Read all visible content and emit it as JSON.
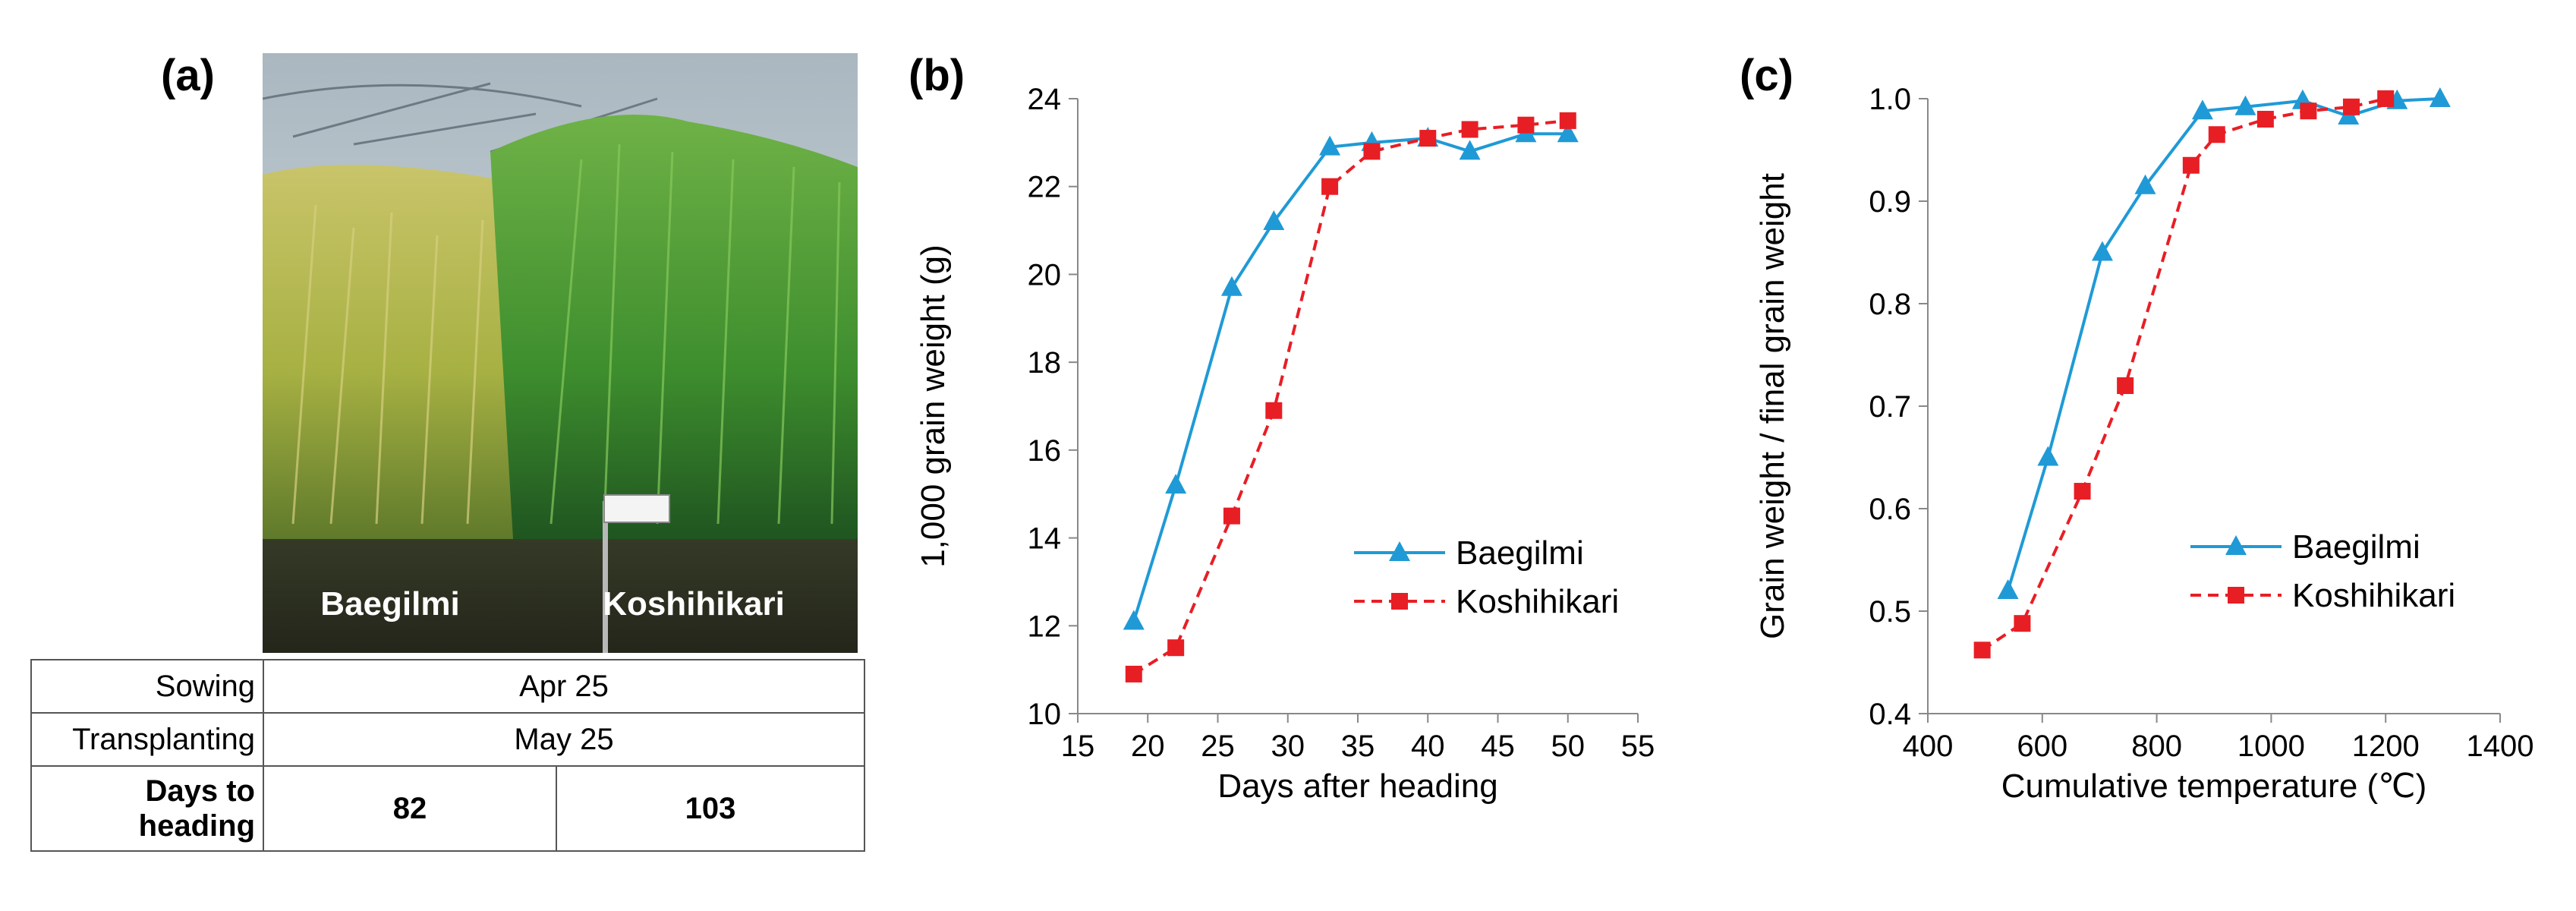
{
  "panel_labels": {
    "a": "(a)",
    "b": "(b)",
    "c": "(c)"
  },
  "photo": {
    "left_label": "Baegilmi",
    "right_label": "Koshihikari"
  },
  "table": {
    "rows": [
      {
        "label": "Sowing",
        "value": "Apr 25"
      },
      {
        "label": "Transplanting",
        "value": "May 25"
      }
    ],
    "heading": {
      "label_line1": "Days to",
      "label_line2": "heading",
      "baegilmi": "82",
      "koshihikari": "103"
    }
  },
  "colors": {
    "baegilmi": "#1f9ad6",
    "koshihikari": "#e81e25"
  },
  "chart_data": [
    {
      "type": "line",
      "title": "",
      "xlabel": "Days after heading",
      "ylabel": "1,000 grain weight (g)",
      "xlim": [
        15,
        55
      ],
      "ylim": [
        10,
        24
      ],
      "xticks": [
        15,
        20,
        25,
        30,
        35,
        40,
        45,
        50,
        55
      ],
      "yticks": [
        10,
        12,
        14,
        16,
        18,
        20,
        22,
        24
      ],
      "legend": "center-right",
      "grid": false,
      "series": [
        {
          "name": "Baegilmi",
          "marker": "triangle",
          "style": "solid",
          "x": [
            19,
            22,
            26,
            29,
            33,
            36,
            40,
            43,
            47,
            50
          ],
          "y": [
            12.1,
            15.2,
            19.7,
            21.2,
            22.9,
            23.0,
            23.1,
            22.8,
            23.2,
            23.2
          ]
        },
        {
          "name": "Koshihikari",
          "marker": "square",
          "style": "dashed",
          "x": [
            19,
            22,
            26,
            29,
            33,
            36,
            40,
            43,
            47,
            50
          ],
          "y": [
            10.9,
            11.5,
            14.5,
            16.9,
            22.0,
            22.8,
            23.1,
            23.3,
            23.4,
            23.5
          ]
        }
      ]
    },
    {
      "type": "line",
      "title": "",
      "xlabel": "Cumulative temperature (℃)",
      "ylabel": "Grain weight / final grain weight",
      "xlim": [
        400,
        1400
      ],
      "ylim": [
        0.4,
        1.0
      ],
      "xticks": [
        400,
        600,
        800,
        1000,
        1200,
        1400
      ],
      "yticks": [
        0.4,
        0.5,
        0.6,
        0.7,
        0.8,
        0.9,
        1.0
      ],
      "ytick_labels": [
        "0.4",
        "0.5",
        "0.6",
        "0.7",
        "0.8",
        "0.9",
        "1.0"
      ],
      "legend": "lower-right",
      "grid": false,
      "series": [
        {
          "name": "Baegilmi",
          "marker": "triangle",
          "style": "solid",
          "x": [
            540,
            610,
            705,
            780,
            880,
            955,
            1055,
            1135,
            1220,
            1295
          ],
          "y": [
            0.52,
            0.65,
            0.85,
            0.915,
            0.988,
            0.992,
            0.998,
            0.983,
            0.998,
            1.0
          ]
        },
        {
          "name": "Koshihikari",
          "marker": "square",
          "style": "dashed",
          "x": [
            495,
            565,
            670,
            745,
            860,
            905,
            990,
            1065,
            1140,
            1200
          ],
          "y": [
            0.462,
            0.488,
            0.617,
            0.72,
            0.935,
            0.965,
            0.98,
            0.988,
            0.992,
            1.0
          ]
        }
      ]
    }
  ]
}
